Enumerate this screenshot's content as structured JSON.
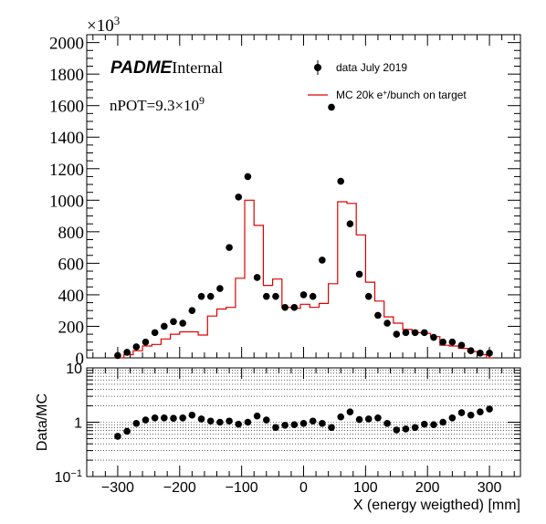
{
  "chart_data": [
    {
      "type": "scatter",
      "panel": "main",
      "y_multiplier_label": "×10",
      "y_multiplier_exp": "3",
      "xlim": [
        -350,
        350
      ],
      "ylim": [
        0,
        2050
      ],
      "yticks": [
        0,
        200,
        400,
        600,
        800,
        1000,
        1200,
        1400,
        1600,
        1800,
        2000
      ],
      "tag": {
        "bold": "PADME",
        "rest": "Internal"
      },
      "npot": {
        "base": "nPOT=9.3×10",
        "exp": "9"
      },
      "legend": [
        {
          "name": "data July 2019",
          "marker": "dot",
          "color": "#000000"
        },
        {
          "name_pre": "MC 20k e",
          "name_sup": "+",
          "name_post": "/bunch on target",
          "marker": "line",
          "color": "#dd0000"
        }
      ],
      "series": [
        {
          "name": "data July 2019",
          "x": [
            -300,
            -285,
            -270,
            -255,
            -240,
            -225,
            -210,
            -195,
            -180,
            -165,
            -150,
            -135,
            -120,
            -105,
            -90,
            -75,
            -60,
            -45,
            -30,
            -15,
            0,
            15,
            30,
            45,
            60,
            75,
            90,
            105,
            120,
            135,
            150,
            165,
            180,
            195,
            210,
            225,
            240,
            255,
            270,
            285,
            300
          ],
          "y": [
            15,
            35,
            70,
            100,
            160,
            200,
            230,
            220,
            300,
            390,
            390,
            440,
            700,
            1020,
            1150,
            510,
            390,
            390,
            320,
            320,
            400,
            390,
            620,
            1590,
            1120,
            850,
            530,
            390,
            270,
            220,
            150,
            160,
            160,
            160,
            130,
            100,
            100,
            80,
            45,
            30,
            30
          ]
        },
        {
          "name": "MC",
          "edges": [
            -305,
            -290,
            -275,
            -260,
            -245,
            -230,
            -215,
            -200,
            -185,
            -170,
            -155,
            -140,
            -125,
            -110,
            -95,
            -80,
            -65,
            -50,
            -35,
            -20,
            -5,
            10,
            25,
            40,
            55,
            70,
            85,
            100,
            115,
            130,
            145,
            160,
            175,
            190,
            205,
            220,
            235,
            250,
            265,
            280,
            295,
            305
          ],
          "values": [
            0,
            20,
            45,
            75,
            85,
            120,
            150,
            165,
            165,
            145,
            265,
            310,
            320,
            505,
            1000,
            840,
            460,
            500,
            320,
            315,
            340,
            320,
            345,
            470,
            990,
            980,
            780,
            480,
            360,
            260,
            220,
            180,
            160,
            155,
            135,
            80,
            75,
            60,
            40,
            20,
            0
          ]
        }
      ]
    },
    {
      "type": "scatter",
      "panel": "ratio",
      "xlabel": "X (energy weigthed) [mm]",
      "ylabel": "Data/MC",
      "xlim": [
        -350,
        350
      ],
      "ylim": [
        0.1,
        10
      ],
      "log_y": true,
      "xticks": [
        -300,
        -200,
        -100,
        0,
        100,
        200,
        300
      ],
      "xtick_labels": [
        "−300",
        "−200",
        "−100",
        "0",
        "100",
        "200",
        "300"
      ],
      "ytick_labels": [
        {
          "base": "10",
          "exp": "−1",
          "value": 0.1
        },
        {
          "base": "1",
          "exp": "",
          "value": 1
        },
        {
          "base": "10",
          "exp": "",
          "value": 10
        }
      ],
      "x": [
        -300,
        -285,
        -270,
        -255,
        -240,
        -225,
        -210,
        -195,
        -180,
        -165,
        -150,
        -135,
        -120,
        -105,
        -90,
        -75,
        -60,
        -45,
        -30,
        -15,
        0,
        15,
        30,
        45,
        60,
        75,
        90,
        105,
        120,
        135,
        150,
        165,
        180,
        195,
        210,
        225,
        240,
        255,
        270,
        285,
        300
      ],
      "y": [
        0.55,
        0.68,
        0.95,
        1.1,
        1.2,
        1.2,
        1.18,
        1.2,
        1.35,
        1.15,
        1.05,
        1.0,
        1.05,
        0.92,
        1.0,
        1.3,
        1.1,
        0.8,
        0.88,
        0.9,
        0.95,
        1.05,
        0.95,
        0.8,
        1.25,
        1.55,
        1.12,
        1.15,
        1.2,
        0.95,
        0.72,
        0.75,
        0.8,
        0.92,
        0.9,
        1.0,
        1.2,
        1.5,
        1.35,
        1.55,
        1.75
      ]
    }
  ]
}
